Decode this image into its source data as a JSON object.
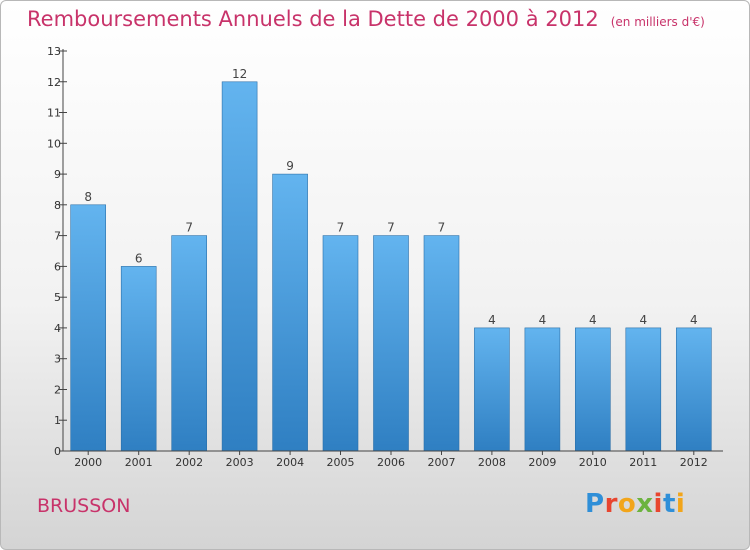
{
  "title": "Remboursements Annuels de la Dette de 2000 à 2012",
  "unit_note": "(en milliers d'€)",
  "commune": "BRUSSON",
  "logo": {
    "text": "Proxiti",
    "letter_colors": [
      "#2f8fd8",
      "#e8452f",
      "#f2a51a",
      "#6cb33f",
      "#e8452f",
      "#2f8fd8",
      "#f2a51a"
    ]
  },
  "colors": {
    "title": "#c8336a",
    "bar_top": "#63b4ef",
    "bar_bottom": "#2f7fc2",
    "axis": "#444444"
  },
  "chart_data": {
    "type": "bar",
    "categories": [
      "2000",
      "2001",
      "2002",
      "2003",
      "2004",
      "2005",
      "2006",
      "2007",
      "2008",
      "2009",
      "2010",
      "2011",
      "2012"
    ],
    "values": [
      8,
      6,
      7,
      12,
      9,
      7,
      7,
      7,
      4,
      4,
      4,
      4,
      4
    ],
    "data_labels": [
      "8",
      "6",
      "7",
      "12",
      "9",
      "7",
      "7",
      "7",
      "4",
      "4",
      "4",
      "4",
      "4"
    ],
    "ylim": [
      0,
      13
    ],
    "yticks": [
      "0",
      "1",
      "2",
      "3",
      "4",
      "5",
      "6",
      "7",
      "8",
      "9",
      "10",
      "11",
      "12",
      "13"
    ],
    "grid": false
  }
}
